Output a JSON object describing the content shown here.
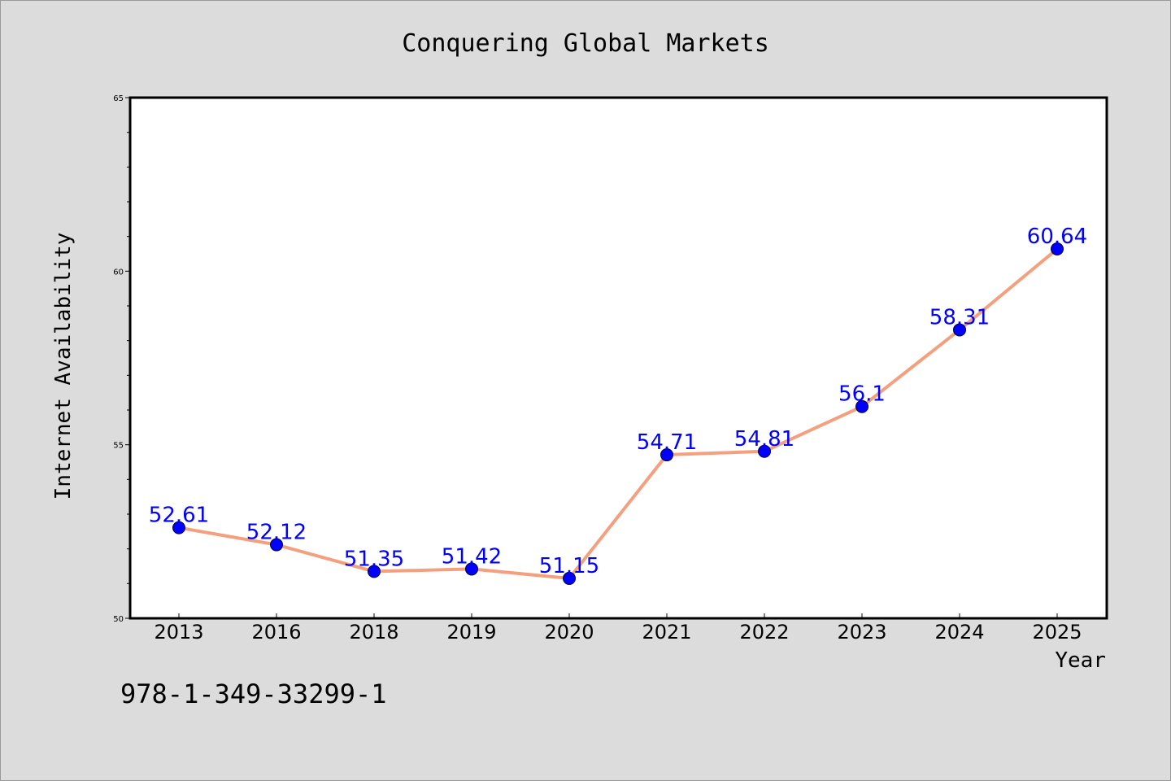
{
  "chart_data": {
    "type": "line",
    "title": "Conquering Global Markets",
    "xlabel": "Year",
    "ylabel": "Internet Availability",
    "categories": [
      "2013",
      "2016",
      "2018",
      "2019",
      "2020",
      "2021",
      "2022",
      "2023",
      "2024",
      "2025"
    ],
    "series": [
      {
        "values": [
          52.61,
          52.12,
          51.35,
          51.42,
          51.15,
          54.71,
          54.81,
          56.1,
          58.31,
          60.64
        ],
        "data_labels": [
          "52.61",
          "52.12",
          "51.35",
          "51.42",
          "51.15",
          "54.71",
          "54.81",
          "56.1",
          "58.31",
          "60.64"
        ]
      }
    ],
    "ylim": [
      50,
      65
    ],
    "yticks": [
      "50",
      "55",
      "60",
      "65"
    ],
    "grid": false,
    "line_color": "#f4a07f",
    "marker_color": "#0000ff",
    "label_color": "#0000ff",
    "background": "#dcdcdc",
    "plot_background": "#ffffff"
  },
  "footer": {
    "isbn": "978-1-349-33299-1"
  }
}
